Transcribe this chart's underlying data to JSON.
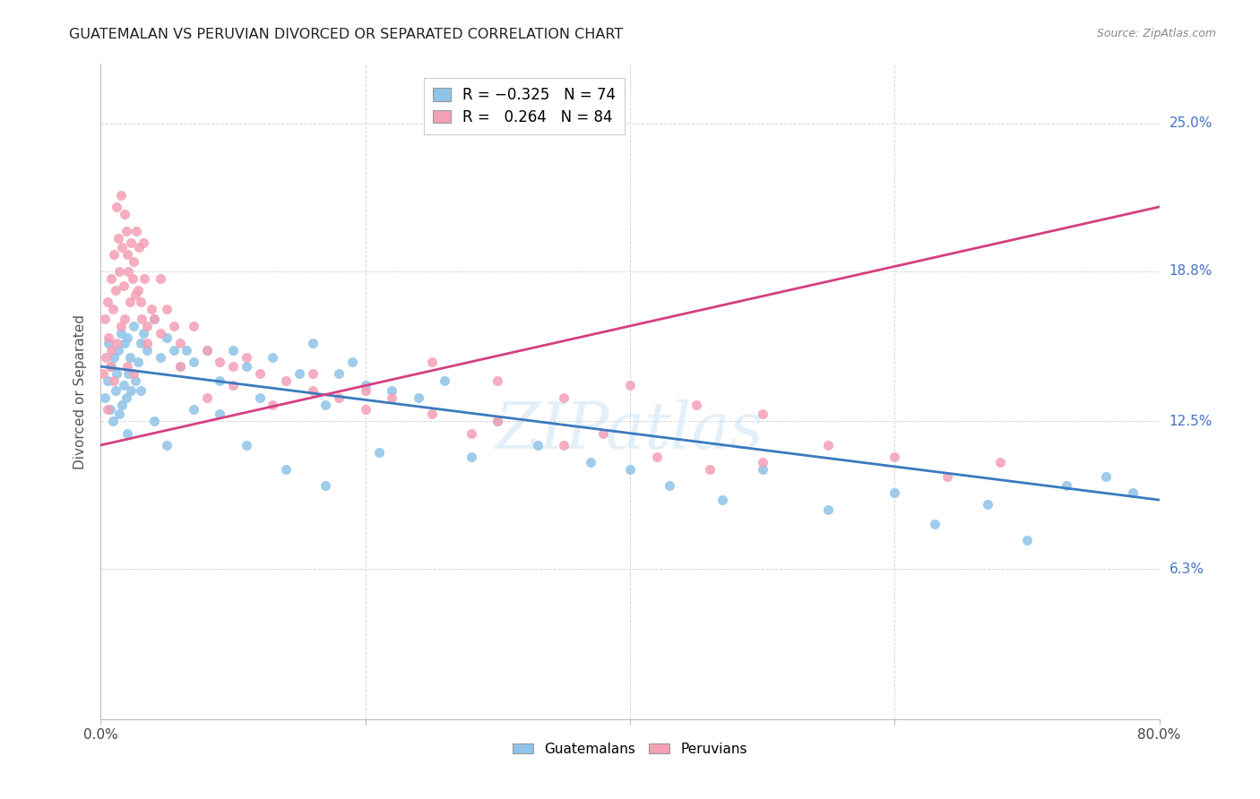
{
  "title": "GUATEMALAN VS PERUVIAN DIVORCED OR SEPARATED CORRELATION CHART",
  "source": "Source: ZipAtlas.com",
  "ylabel": "Divorced or Separated",
  "yticks_labels": [
    "6.3%",
    "12.5%",
    "18.8%",
    "25.0%"
  ],
  "ytick_values": [
    6.3,
    12.5,
    18.8,
    25.0
  ],
  "xlim": [
    0.0,
    80.0
  ],
  "ylim": [
    0.0,
    27.5
  ],
  "legend_guatemalans": "Guatemalans",
  "legend_peruvians": "Peruvians",
  "R_guatemalan": -0.325,
  "N_guatemalan": 74,
  "R_peruvian": 0.264,
  "N_peruvian": 84,
  "blue_color": "#8ec4e8",
  "pink_color": "#f4a0b5",
  "blue_line_color": "#3a7abf",
  "pink_line_color": "#d44080",
  "blue_line_y0": 14.8,
  "blue_line_y1": 9.2,
  "pink_line_y0": 11.5,
  "pink_line_y1": 21.5,
  "guatemalan_x": [
    0.3,
    0.5,
    0.6,
    0.7,
    0.8,
    0.9,
    1.0,
    1.1,
    1.2,
    1.3,
    1.4,
    1.5,
    1.6,
    1.7,
    1.8,
    1.9,
    2.0,
    2.1,
    2.2,
    2.3,
    2.5,
    2.6,
    2.8,
    3.0,
    3.2,
    3.5,
    4.0,
    4.5,
    5.0,
    5.5,
    6.0,
    6.5,
    7.0,
    8.0,
    9.0,
    10.0,
    11.0,
    12.0,
    13.0,
    15.0,
    16.0,
    17.0,
    18.0,
    19.0,
    20.0,
    22.0,
    24.0,
    26.0,
    28.0,
    30.0,
    33.0,
    37.0,
    40.0,
    43.0,
    47.0,
    50.0,
    55.0,
    60.0,
    63.0,
    67.0,
    70.0,
    73.0,
    76.0,
    78.0,
    2.0,
    3.0,
    4.0,
    5.0,
    7.0,
    9.0,
    11.0,
    14.0,
    17.0,
    21.0
  ],
  "guatemalan_y": [
    13.5,
    14.2,
    15.8,
    13.0,
    14.8,
    12.5,
    15.2,
    13.8,
    14.5,
    15.5,
    12.8,
    16.2,
    13.2,
    14.0,
    15.8,
    13.5,
    16.0,
    14.5,
    15.2,
    13.8,
    16.5,
    14.2,
    15.0,
    15.8,
    16.2,
    15.5,
    16.8,
    15.2,
    16.0,
    15.5,
    14.8,
    15.5,
    15.0,
    15.5,
    14.2,
    15.5,
    14.8,
    13.5,
    15.2,
    14.5,
    15.8,
    13.2,
    14.5,
    15.0,
    14.0,
    13.8,
    13.5,
    14.2,
    11.0,
    12.5,
    11.5,
    10.8,
    10.5,
    9.8,
    9.2,
    10.5,
    8.8,
    9.5,
    8.2,
    9.0,
    7.5,
    9.8,
    10.2,
    9.5,
    12.0,
    13.8,
    12.5,
    11.5,
    13.0,
    12.8,
    11.5,
    10.5,
    9.8,
    11.2
  ],
  "peruvian_x": [
    0.2,
    0.3,
    0.4,
    0.5,
    0.5,
    0.6,
    0.7,
    0.8,
    0.8,
    0.9,
    1.0,
    1.0,
    1.1,
    1.2,
    1.2,
    1.3,
    1.4,
    1.5,
    1.5,
    1.6,
    1.7,
    1.8,
    1.8,
    1.9,
    2.0,
    2.0,
    2.1,
    2.2,
    2.3,
    2.4,
    2.5,
    2.6,
    2.7,
    2.8,
    2.9,
    3.0,
    3.1,
    3.2,
    3.3,
    3.5,
    3.8,
    4.0,
    4.5,
    5.0,
    5.5,
    6.0,
    7.0,
    8.0,
    9.0,
    10.0,
    11.0,
    12.0,
    14.0,
    16.0,
    18.0,
    20.0,
    22.0,
    25.0,
    28.0,
    30.0,
    35.0,
    38.0,
    42.0,
    46.0,
    50.0,
    55.0,
    60.0,
    64.0,
    68.0,
    2.5,
    3.5,
    4.5,
    6.0,
    8.0,
    10.0,
    13.0,
    16.0,
    20.0,
    25.0,
    30.0,
    35.0,
    40.0,
    45.0,
    50.0
  ],
  "peruvian_y": [
    14.5,
    16.8,
    15.2,
    17.5,
    13.0,
    16.0,
    14.8,
    18.5,
    15.5,
    17.2,
    19.5,
    14.2,
    18.0,
    21.5,
    15.8,
    20.2,
    18.8,
    22.0,
    16.5,
    19.8,
    18.2,
    21.2,
    16.8,
    20.5,
    19.5,
    14.8,
    18.8,
    17.5,
    20.0,
    18.5,
    19.2,
    17.8,
    20.5,
    18.0,
    19.8,
    17.5,
    16.8,
    20.0,
    18.5,
    16.5,
    17.2,
    16.8,
    18.5,
    17.2,
    16.5,
    15.8,
    16.5,
    15.5,
    15.0,
    14.8,
    15.2,
    14.5,
    14.2,
    13.8,
    13.5,
    13.0,
    13.5,
    12.8,
    12.0,
    12.5,
    11.5,
    12.0,
    11.0,
    10.5,
    10.8,
    11.5,
    11.0,
    10.2,
    10.8,
    14.5,
    15.8,
    16.2,
    14.8,
    13.5,
    14.0,
    13.2,
    14.5,
    13.8,
    15.0,
    14.2,
    13.5,
    14.0,
    13.2,
    12.8
  ]
}
